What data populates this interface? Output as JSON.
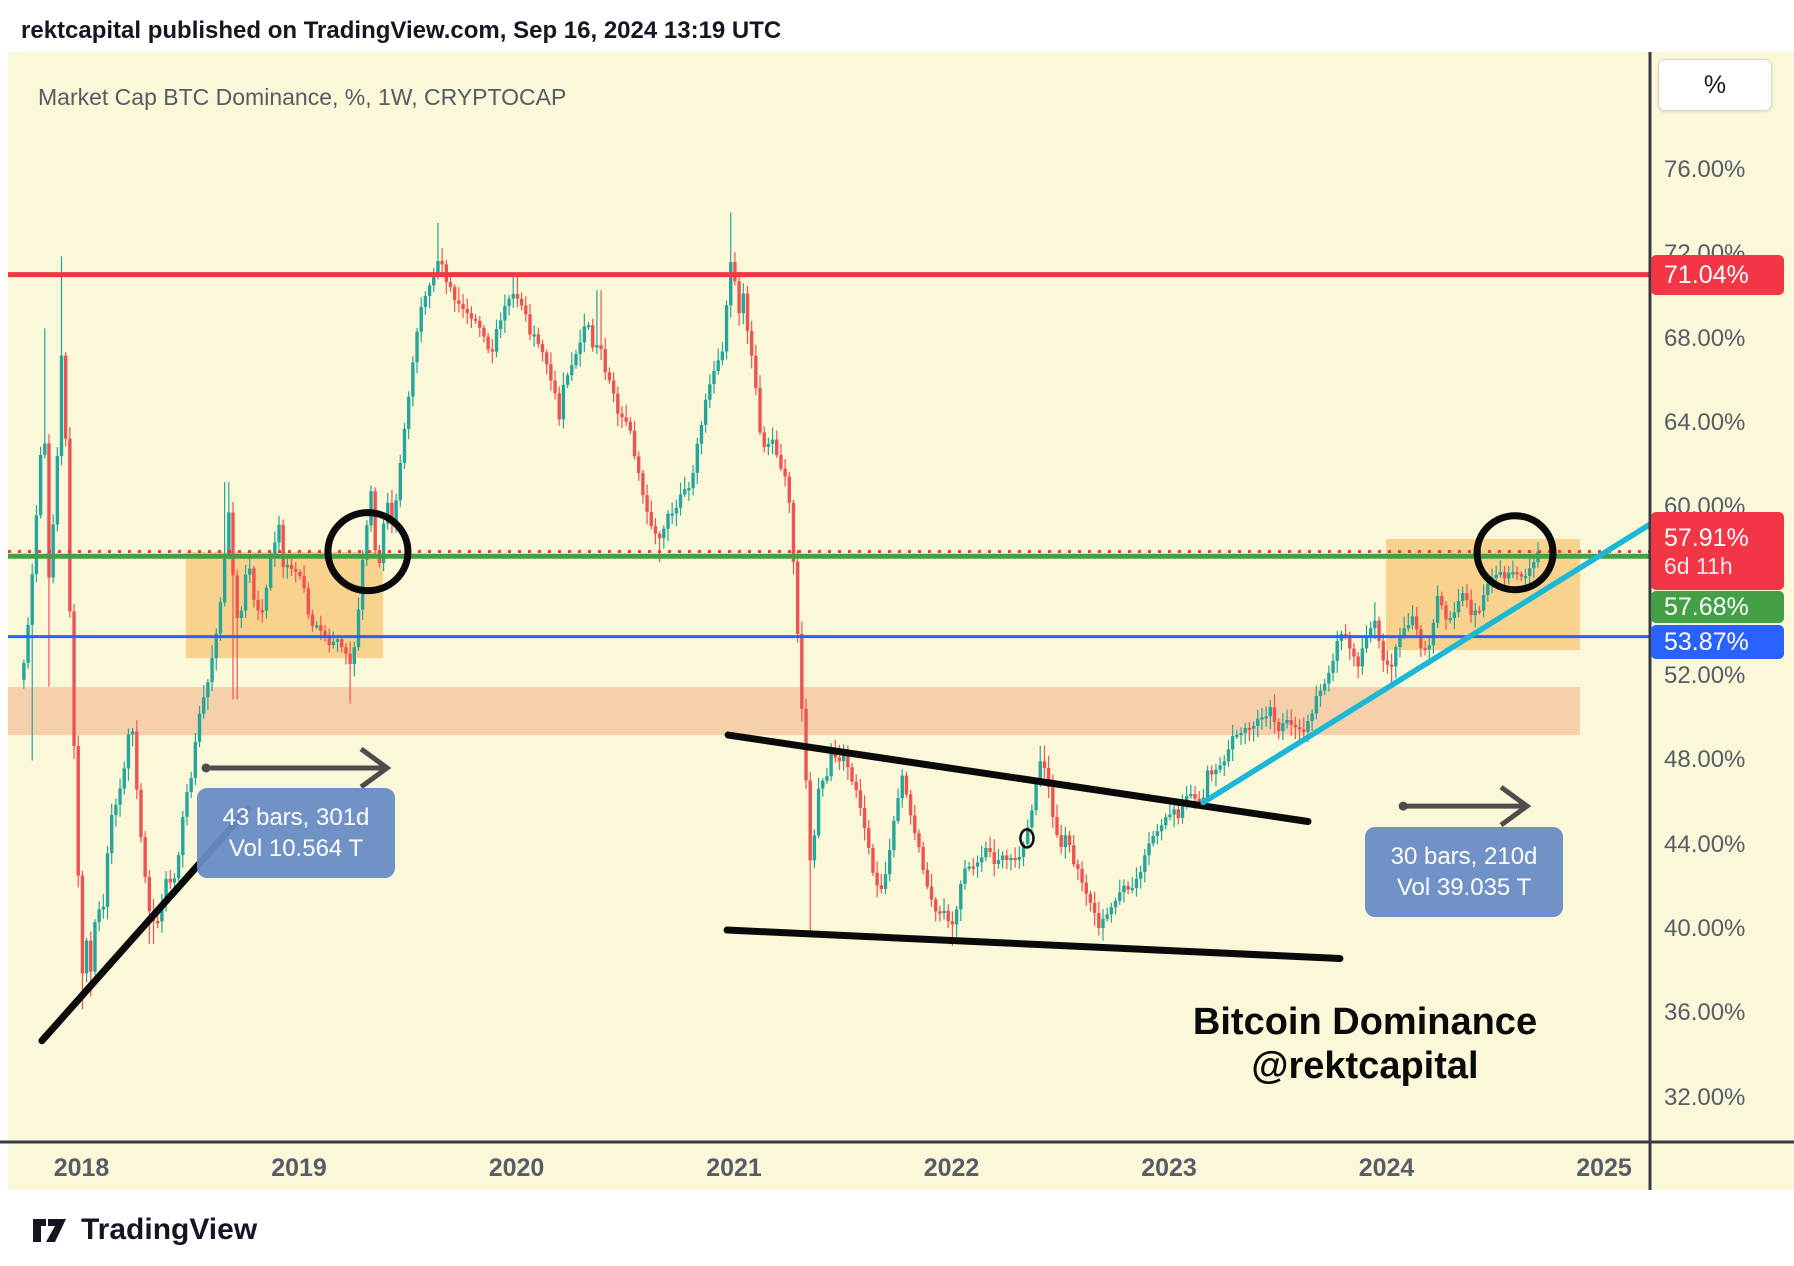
{
  "header": {
    "publish_line": "rektcapital published on TradingView.com, Sep 16, 2024 13:19 UTC"
  },
  "chart": {
    "title": "Market Cap BTC Dominance, %, 1W, CRYPTOCAP"
  },
  "axis": {
    "unit_button": "%",
    "y_ticks": [
      {
        "label": "76.00%",
        "value": 76
      },
      {
        "label": "72.00%",
        "value": 72
      },
      {
        "label": "68.00%",
        "value": 68
      },
      {
        "label": "64.00%",
        "value": 64
      },
      {
        "label": "60.00%",
        "value": 60
      },
      {
        "label": "52.00%",
        "value": 52
      },
      {
        "label": "48.00%",
        "value": 48
      },
      {
        "label": "44.00%",
        "value": 44
      },
      {
        "label": "40.00%",
        "value": 40
      },
      {
        "label": "36.00%",
        "value": 36
      },
      {
        "label": "32.00%",
        "value": 32
      }
    ],
    "x_ticks": [
      {
        "label": "2018",
        "year": 2018
      },
      {
        "label": "2019",
        "year": 2019
      },
      {
        "label": "2020",
        "year": 2020
      },
      {
        "label": "2021",
        "year": 2021
      },
      {
        "label": "2022",
        "year": 2022
      },
      {
        "label": "2023",
        "year": 2023
      },
      {
        "label": "2024",
        "year": 2024
      },
      {
        "label": "2025",
        "year": 2025
      }
    ]
  },
  "price_labels": [
    {
      "label": "71.04%",
      "value": 71.04,
      "color": "#f23645"
    },
    {
      "label": "57.91%",
      "sub": "6d 11h",
      "value": 57.91,
      "color": "#f23645"
    },
    {
      "label": "57.68%",
      "value": 57.68,
      "color": "#43a047"
    },
    {
      "label": "53.87%",
      "value": 53.87,
      "color": "#2962ff"
    }
  ],
  "measure_labels": [
    {
      "line1": "43 bars, 301d",
      "line2": "Vol 10.564 T"
    },
    {
      "line1": "30 bars, 210d",
      "line2": "Vol 39.035 T"
    }
  ],
  "watermark": {
    "line1": "Bitcoin Dominance",
    "line2": "@rektcapital"
  },
  "footer": {
    "brand": "TradingView"
  },
  "colors": {
    "background": "#faf8d9",
    "bull": "#26a69a",
    "bear": "#ef5350",
    "resistance_red": "#f23645",
    "level_green": "#43a047",
    "level_blue": "#2962ff",
    "trend_cyan": "#1ab8d6",
    "band_pink": "rgba(239,128,80,0.33)",
    "box_orange": "rgba(248,166,50,0.45)",
    "drawing_black": "#0a0a0a",
    "arrow_gray": "#4d4d4d",
    "axis_line": "#363a45"
  },
  "chart_data": {
    "type": "candlestick",
    "title": "Market Cap BTC Dominance, %, 1W, CRYPTOCAP",
    "metric": "Market Cap BTC Dominance",
    "unit": "%",
    "interval": "1W",
    "source": "CRYPTOCAP",
    "current_price": 57.91,
    "countdown": "6d 11h",
    "visible_value_range": [
      29.9,
      81.6
    ],
    "visible_time_range": [
      2017.66,
      2025.21
    ],
    "levels": {
      "resistance_red": 71.04,
      "price_line_dotted": 57.91,
      "green_line": 57.68,
      "blue_line": 53.87
    },
    "bands": {
      "pink_zone": {
        "t": [
          2017.66,
          2024.89
        ],
        "v": [
          49.2,
          51.48
        ]
      },
      "orange_box_left": {
        "t": [
          2018.48,
          2019.386
        ],
        "v": [
          52.85,
          57.88
        ]
      },
      "orange_box_right": {
        "t": [
          2023.998,
          2024.89
        ],
        "v": [
          53.23,
          58.5
        ]
      }
    },
    "trendlines": [
      {
        "name": "left-rising-support",
        "from": [
          2017.818,
          34.7
        ],
        "to": [
          2018.766,
          45.7
        ]
      },
      {
        "name": "triangle-upper",
        "from": [
          2020.973,
          49.2
        ],
        "to": [
          2023.639,
          45.1
        ]
      },
      {
        "name": "triangle-lower",
        "from": [
          2020.968,
          39.95
        ],
        "to": [
          2023.786,
          38.6
        ]
      },
      {
        "name": "cyan-uptrend",
        "from": [
          2023.157,
          46.0
        ],
        "to": [
          2025.212,
          59.2
        ]
      }
    ],
    "circles": [
      {
        "name": "breakout-2019",
        "t": 2019.317,
        "v": 57.9
      },
      {
        "name": "breakout-2024",
        "t": 2024.591,
        "v": 57.85
      }
    ],
    "mini_ellipse": {
      "t": 2022.347,
      "v": 44.3
    },
    "arrows": [
      {
        "name": "measure-arrow-2018",
        "from_t": 2018.568,
        "to_t": 2019.405,
        "v": 47.64
      },
      {
        "name": "measure-arrow-2024",
        "from_t": 2024.072,
        "to_t": 2024.646,
        "v": 45.83
      }
    ],
    "weekly_close_keyframes": [
      [
        2017.735,
        52.5
      ],
      [
        2017.772,
        56.5
      ],
      [
        2017.809,
        62.0
      ],
      [
        2017.828,
        64.5
      ],
      [
        2017.846,
        56.0
      ],
      [
        2017.864,
        58.0
      ],
      [
        2017.883,
        61.5
      ],
      [
        2017.901,
        64.0
      ],
      [
        2017.915,
        70.0
      ],
      [
        2017.933,
        60.0
      ],
      [
        2017.952,
        53.0
      ],
      [
        2017.97,
        47.5
      ],
      [
        2017.989,
        41.0
      ],
      [
        2018.007,
        37.5
      ],
      [
        2018.025,
        39.5
      ],
      [
        2018.044,
        38.0
      ],
      [
        2018.062,
        40.5
      ],
      [
        2018.099,
        41.0
      ],
      [
        2018.136,
        45.5
      ],
      [
        2018.172,
        46.2
      ],
      [
        2018.209,
        48.5
      ],
      [
        2018.228,
        50.5
      ],
      [
        2018.246,
        47.5
      ],
      [
        2018.283,
        43.5
      ],
      [
        2018.32,
        40.2
      ],
      [
        2018.356,
        40.6
      ],
      [
        2018.393,
        42.5
      ],
      [
        2018.43,
        42.2
      ],
      [
        2018.467,
        45.5
      ],
      [
        2018.503,
        47.2
      ],
      [
        2018.54,
        50.2
      ],
      [
        2018.577,
        51.5
      ],
      [
        2018.614,
        53.5
      ],
      [
        2018.651,
        56.5
      ],
      [
        2018.669,
        60.0
      ],
      [
        2018.687,
        59.4
      ],
      [
        2018.706,
        54.5
      ],
      [
        2018.743,
        55.5
      ],
      [
        2018.761,
        57.7
      ],
      [
        2018.798,
        55.4
      ],
      [
        2018.834,
        55.1
      ],
      [
        2018.871,
        57.6
      ],
      [
        2018.908,
        59.1
      ],
      [
        2018.926,
        57.3
      ],
      [
        2018.982,
        56.9
      ],
      [
        2019.018,
        56.4
      ],
      [
        2019.055,
        54.4
      ],
      [
        2019.092,
        54.2
      ],
      [
        2019.129,
        53.6
      ],
      [
        2019.165,
        53.8
      ],
      [
        2019.202,
        53.4
      ],
      [
        2019.239,
        52.3
      ],
      [
        2019.257,
        53.4
      ],
      [
        2019.294,
        57.5
      ],
      [
        2019.331,
        60.6
      ],
      [
        2019.349,
        58.2
      ],
      [
        2019.368,
        57.4
      ],
      [
        2019.386,
        58.9
      ],
      [
        2019.404,
        60.4
      ],
      [
        2019.423,
        58.8
      ],
      [
        2019.46,
        61.5
      ],
      [
        2019.497,
        64.8
      ],
      [
        2019.533,
        67.5
      ],
      [
        2019.57,
        70.0
      ],
      [
        2019.607,
        70.5
      ],
      [
        2019.644,
        72.0
      ],
      [
        2019.662,
        71.2
      ],
      [
        2019.699,
        70.3
      ],
      [
        2019.736,
        69.6
      ],
      [
        2019.772,
        69.3
      ],
      [
        2019.809,
        68.8
      ],
      [
        2019.846,
        68.3
      ],
      [
        2019.883,
        67.3
      ],
      [
        2019.92,
        68.8
      ],
      [
        2019.956,
        69.8
      ],
      [
        2019.993,
        70.2
      ],
      [
        2020.03,
        69.5
      ],
      [
        2020.067,
        68.2
      ],
      [
        2020.103,
        67.9
      ],
      [
        2020.14,
        66.8
      ],
      [
        2020.177,
        65.3
      ],
      [
        2020.195,
        63.9
      ],
      [
        2020.214,
        65.8
      ],
      [
        2020.25,
        66.4
      ],
      [
        2020.287,
        67.8
      ],
      [
        2020.324,
        68.8
      ],
      [
        2020.361,
        67.2
      ],
      [
        2020.379,
        68.4
      ],
      [
        2020.398,
        66.9
      ],
      [
        2020.434,
        65.8
      ],
      [
        2020.471,
        64.3
      ],
      [
        2020.508,
        64.2
      ],
      [
        2020.545,
        62.5
      ],
      [
        2020.581,
        60.6
      ],
      [
        2020.618,
        59.2
      ],
      [
        2020.655,
        58.5
      ],
      [
        2020.692,
        59.6
      ],
      [
        2020.729,
        59.9
      ],
      [
        2020.765,
        60.8
      ],
      [
        2020.802,
        61.2
      ],
      [
        2020.839,
        63.4
      ],
      [
        2020.876,
        65.4
      ],
      [
        2020.913,
        66.8
      ],
      [
        2020.949,
        67.6
      ],
      [
        2020.986,
        71.8
      ],
      [
        2021.005,
        70.6
      ],
      [
        2021.023,
        69.2
      ],
      [
        2021.041,
        70.4
      ],
      [
        2021.06,
        68.5
      ],
      [
        2021.078,
        67.3
      ],
      [
        2021.096,
        66.2
      ],
      [
        2021.115,
        64.1
      ],
      [
        2021.133,
        62.6
      ],
      [
        2021.17,
        63.3
      ],
      [
        2021.206,
        62.2
      ],
      [
        2021.243,
        61.5
      ],
      [
        2021.262,
        59.2
      ],
      [
        2021.28,
        56.5
      ],
      [
        2021.298,
        52.8
      ],
      [
        2021.317,
        49.6
      ],
      [
        2021.335,
        46.4
      ],
      [
        2021.353,
        42.8
      ],
      [
        2021.372,
        44.5
      ],
      [
        2021.39,
        46.8
      ],
      [
        2021.427,
        47.2
      ],
      [
        2021.446,
        48.3
      ],
      [
        2021.482,
        47.7
      ],
      [
        2021.501,
        48.4
      ],
      [
        2021.537,
        47.3
      ],
      [
        2021.574,
        46.1
      ],
      [
        2021.611,
        44.2
      ],
      [
        2021.648,
        42.3
      ],
      [
        2021.666,
        41.6
      ],
      [
        2021.703,
        42.8
      ],
      [
        2021.74,
        45.3
      ],
      [
        2021.776,
        47.3
      ],
      [
        2021.813,
        45.5
      ],
      [
        2021.85,
        43.8
      ],
      [
        2021.887,
        42.2
      ],
      [
        2021.924,
        40.8
      ],
      [
        2021.96,
        40.9
      ],
      [
        2021.997,
        39.9
      ],
      [
        2022.016,
        40.6
      ],
      [
        2022.052,
        42.9
      ],
      [
        2022.089,
        42.8
      ],
      [
        2022.126,
        43.4
      ],
      [
        2022.163,
        43.8
      ],
      [
        2022.199,
        43.1
      ],
      [
        2022.236,
        43.5
      ],
      [
        2022.273,
        43.4
      ],
      [
        2022.31,
        43.3
      ],
      [
        2022.347,
        44.6
      ],
      [
        2022.365,
        45.3
      ],
      [
        2022.402,
        47.8
      ],
      [
        2022.42,
        48.2
      ],
      [
        2022.438,
        47.1
      ],
      [
        2022.457,
        45.9
      ],
      [
        2022.493,
        43.9
      ],
      [
        2022.53,
        44.4
      ],
      [
        2022.567,
        42.9
      ],
      [
        2022.604,
        42.3
      ],
      [
        2022.641,
        41.2
      ],
      [
        2022.677,
        40.2
      ],
      [
        2022.714,
        40.8
      ],
      [
        2022.751,
        41.4
      ],
      [
        2022.788,
        42.1
      ],
      [
        2022.824,
        41.7
      ],
      [
        2022.861,
        42.6
      ],
      [
        2022.898,
        43.8
      ],
      [
        2022.935,
        44.5
      ],
      [
        2022.971,
        44.8
      ],
      [
        2023.008,
        45.7
      ],
      [
        2023.045,
        45.2
      ],
      [
        2023.082,
        46.4
      ],
      [
        2023.118,
        46.1
      ],
      [
        2023.155,
        46.2
      ],
      [
        2023.173,
        47.3
      ],
      [
        2023.21,
        47.6
      ],
      [
        2023.247,
        47.7
      ],
      [
        2023.284,
        49.0
      ],
      [
        2023.32,
        49.2
      ],
      [
        2023.357,
        49.5
      ],
      [
        2023.394,
        49.8
      ],
      [
        2023.431,
        50.1
      ],
      [
        2023.468,
        50.4
      ],
      [
        2023.504,
        49.3
      ],
      [
        2023.541,
        49.9
      ],
      [
        2023.578,
        49.7
      ],
      [
        2023.615,
        49.4
      ],
      [
        2023.651,
        50.1
      ],
      [
        2023.688,
        51.4
      ],
      [
        2023.725,
        51.7
      ],
      [
        2023.762,
        53.1
      ],
      [
        2023.798,
        54.3
      ],
      [
        2023.835,
        53.0
      ],
      [
        2023.872,
        52.4
      ],
      [
        2023.909,
        54.0
      ],
      [
        2023.945,
        54.9
      ],
      [
        2023.982,
        52.8
      ],
      [
        2024.019,
        52.2
      ],
      [
        2024.056,
        54.0
      ],
      [
        2024.092,
        54.2
      ],
      [
        2024.129,
        54.8
      ],
      [
        2024.166,
        53.0
      ],
      [
        2024.203,
        53.5
      ],
      [
        2024.239,
        56.0
      ],
      [
        2024.276,
        54.7
      ],
      [
        2024.313,
        55.2
      ],
      [
        2024.35,
        56.1
      ],
      [
        2024.386,
        54.9
      ],
      [
        2024.423,
        55.0
      ],
      [
        2024.46,
        56.4
      ],
      [
        2024.497,
        56.9
      ],
      [
        2024.533,
        56.7
      ],
      [
        2024.57,
        56.9
      ],
      [
        2024.607,
        56.8
      ],
      [
        2024.644,
        56.6
      ],
      [
        2024.681,
        57.6
      ],
      [
        2024.699,
        57.91
      ]
    ],
    "wick_highs": [
      [
        2017.828,
        68.5
      ],
      [
        2017.915,
        71.9
      ],
      [
        2018.669,
        61.2
      ],
      [
        2018.908,
        59.6
      ],
      [
        2019.644,
        73.5
      ],
      [
        2019.993,
        71.0
      ],
      [
        2020.379,
        70.3
      ],
      [
        2020.986,
        74.0
      ],
      [
        2022.42,
        48.7
      ],
      [
        2023.945,
        55.5
      ],
      [
        2024.239,
        56.3
      ],
      [
        2024.699,
        58.0
      ]
    ],
    "wick_lows": [
      [
        2017.772,
        48.0
      ],
      [
        2017.846,
        51.5
      ],
      [
        2018.007,
        36.2
      ],
      [
        2018.044,
        36.8
      ],
      [
        2018.32,
        39.3
      ],
      [
        2018.706,
        50.9
      ],
      [
        2019.239,
        50.7
      ],
      [
        2020.655,
        57.4
      ],
      [
        2021.353,
        39.6
      ],
      [
        2021.997,
        39.2
      ],
      [
        2022.677,
        39.7
      ],
      [
        2023.504,
        49.0
      ],
      [
        2023.872,
        51.9
      ],
      [
        2024.019,
        51.6
      ],
      [
        2024.203,
        52.5
      ]
    ]
  }
}
